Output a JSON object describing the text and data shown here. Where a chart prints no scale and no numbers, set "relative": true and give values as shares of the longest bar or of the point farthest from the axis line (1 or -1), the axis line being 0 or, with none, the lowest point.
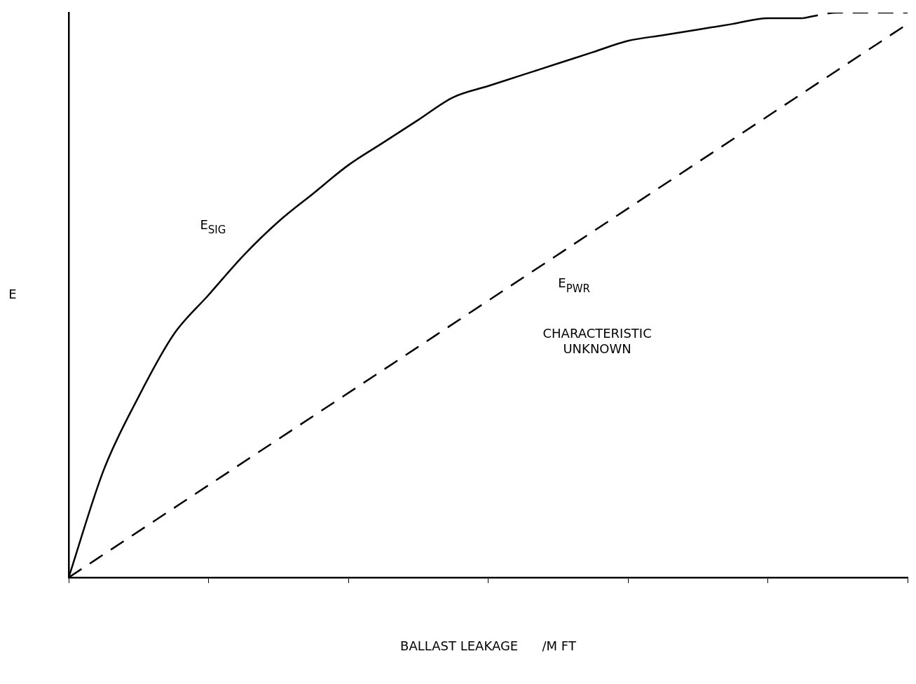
{
  "chart_data": {
    "type": "line",
    "relative": true,
    "xlabel": "BALLAST LEAKAGE      /M FT",
    "ylabel": "E",
    "categories": [
      null,
      null,
      null,
      null,
      null,
      null,
      null,
      null,
      null,
      null,
      null,
      null,
      null,
      null,
      null,
      null,
      null,
      null,
      null,
      null,
      null,
      null,
      null,
      null,
      null
    ],
    "series": [
      {
        "name": "E$_{SIG}$",
        "color": "#000000",
        "line_style": "solid",
        "values": [
          0,
          0.19,
          0.32,
          0.43,
          0.5,
          0.57,
          0.63,
          0.68,
          0.73,
          0.77,
          0.81,
          0.85,
          0.87,
          0.89,
          0.91,
          0.93,
          0.95,
          0.96,
          0.97,
          0.98,
          0.99,
          0.99,
          null,
          null,
          null
        ]
      },
      {
        "color": "#000000",
        "line_style": "dashed",
        "values": [
          null,
          null,
          null,
          null,
          null,
          null,
          null,
          null,
          null,
          null,
          null,
          null,
          null,
          null,
          null,
          null,
          null,
          null,
          null,
          null,
          null,
          0.99,
          1.0,
          1.0,
          1.0
        ]
      },
      {
        "name": "E$_{PWR}$",
        "color": "#000000",
        "line_style": "dashed",
        "values": [
          0,
          null,
          null,
          null,
          null,
          null,
          null,
          null,
          null,
          null,
          null,
          null,
          null,
          null,
          null,
          null,
          null,
          null,
          null,
          null,
          null,
          null,
          null,
          null,
          0.98
        ]
      }
    ],
    "annotations": [
      "CHARACTERISTIC\nUNKNOWN"
    ],
    "grid": false,
    "legend": false,
    "marker": "none"
  }
}
